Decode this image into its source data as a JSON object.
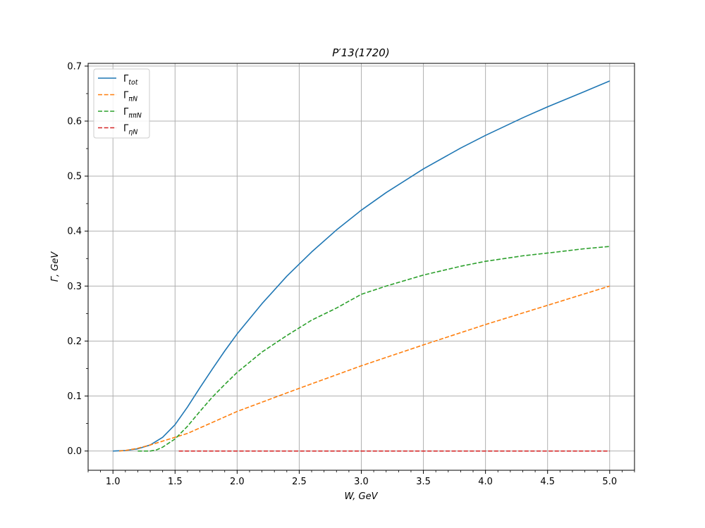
{
  "chart_data": {
    "type": "line",
    "title": "P′13(1720)",
    "xlabel": "W, GeV",
    "ylabel": "Γ,  GeV",
    "xlim": [
      0.8,
      5.2
    ],
    "ylim": [
      -0.035,
      0.705
    ],
    "xticks": [
      "1.0",
      "1.5",
      "2.0",
      "2.5",
      "3.0",
      "3.5",
      "4.0",
      "4.5",
      "5.0"
    ],
    "yticks": [
      "0.0",
      "0.1",
      "0.2",
      "0.3",
      "0.4",
      "0.5",
      "0.6",
      "0.7"
    ],
    "grid": true,
    "legend_position": "top-left",
    "series": [
      {
        "name": "Γtot",
        "label_base": "Γ",
        "label_sub": "tot",
        "color": "#1f77b4",
        "dash": "solid",
        "x": [
          1.0,
          1.1,
          1.2,
          1.3,
          1.4,
          1.5,
          1.6,
          1.7,
          1.8,
          1.9,
          2.0,
          2.2,
          2.4,
          2.6,
          2.8,
          3.0,
          3.2,
          3.5,
          3.8,
          4.0,
          4.3,
          4.5,
          4.8,
          5.0
        ],
        "y": [
          0.0,
          0.001,
          0.004,
          0.011,
          0.025,
          0.048,
          0.08,
          0.115,
          0.149,
          0.182,
          0.213,
          0.268,
          0.318,
          0.362,
          0.402,
          0.438,
          0.47,
          0.513,
          0.551,
          0.574,
          0.606,
          0.626,
          0.654,
          0.673
        ]
      },
      {
        "name": "ΓπN",
        "label_base": "Γ",
        "label_sub": "πN",
        "color": "#ff7f0e",
        "dash": "dashed",
        "x": [
          1.05,
          1.1,
          1.2,
          1.3,
          1.4,
          1.5,
          1.6,
          1.8,
          2.0,
          2.5,
          3.0,
          3.5,
          4.0,
          4.5,
          5.0
        ],
        "y": [
          0.0,
          0.001,
          0.005,
          0.011,
          0.018,
          0.025,
          0.032,
          0.052,
          0.072,
          0.114,
          0.155,
          0.193,
          0.23,
          0.265,
          0.3
        ]
      },
      {
        "name": "ΓππN",
        "label_base": "Γ",
        "label_sub": "ππN",
        "color": "#2ca02c",
        "dash": "dashed",
        "x": [
          1.2,
          1.3,
          1.35,
          1.4,
          1.5,
          1.6,
          1.7,
          1.8,
          1.9,
          2.0,
          2.2,
          2.4,
          2.6,
          2.8,
          3.0,
          3.2,
          3.5,
          3.8,
          4.0,
          4.3,
          4.5,
          4.8,
          5.0
        ],
        "y": [
          0.0,
          0.0,
          0.002,
          0.007,
          0.022,
          0.045,
          0.072,
          0.098,
          0.121,
          0.143,
          0.18,
          0.21,
          0.238,
          0.26,
          0.285,
          0.3,
          0.32,
          0.336,
          0.345,
          0.355,
          0.36,
          0.368,
          0.372
        ]
      },
      {
        "name": "ΓηN",
        "label_base": "Γ",
        "label_sub": "ηN",
        "color": "#d62728",
        "dash": "dashed",
        "x": [
          1.53,
          2.0,
          3.0,
          4.0,
          5.0
        ],
        "y": [
          0.0,
          0.0,
          0.0,
          0.0,
          0.0
        ]
      }
    ]
  }
}
